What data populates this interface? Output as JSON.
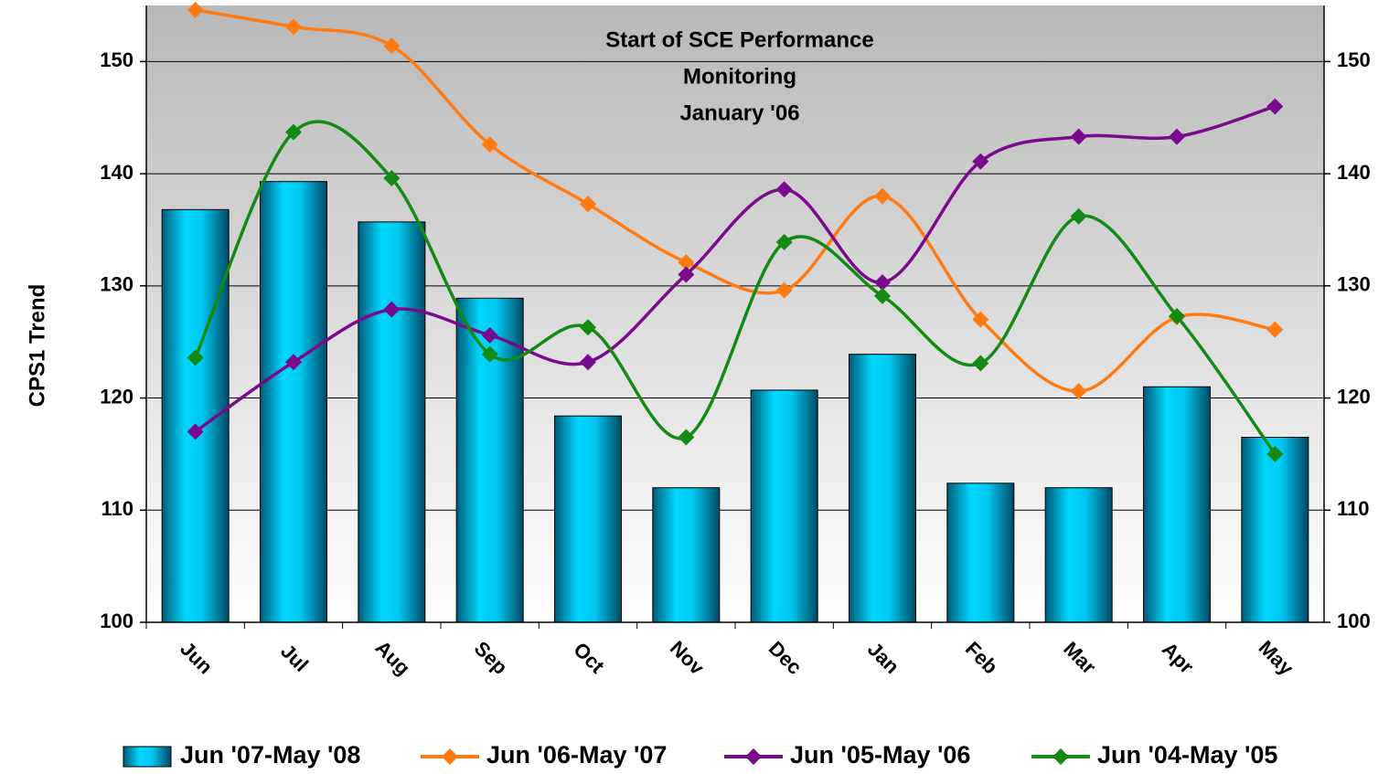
{
  "chart_data": {
    "type": "bar-line",
    "y_label": "CPS1 Trend",
    "annotation": [
      "Start of SCE Performance",
      "Monitoring",
      "January '06"
    ],
    "categories": [
      "Jun",
      "Jul",
      "Aug",
      "Sep",
      "Oct",
      "Nov",
      "Dec",
      "Jan",
      "Feb",
      "Mar",
      "Apr",
      "May"
    ],
    "series": [
      {
        "name": "Jun '07-May '08",
        "kind": "bar",
        "color": "#00c8f0",
        "values": [
          136.8,
          139.3,
          135.7,
          128.9,
          118.4,
          112.0,
          120.7,
          123.9,
          112.4,
          112.0,
          121.0,
          116.5
        ]
      },
      {
        "name": "Jun '06-May '07",
        "kind": "line",
        "color": "#ff7a10",
        "values": [
          154.6,
          153.1,
          151.4,
          142.6,
          137.3,
          132.1,
          129.6,
          138.0,
          127.0,
          120.6,
          127.2,
          126.1
        ]
      },
      {
        "name": "Jun '05-May '06",
        "kind": "line",
        "color": "#7a0a8c",
        "values": [
          117.0,
          123.2,
          127.9,
          125.6,
          123.2,
          131.0,
          138.6,
          130.3,
          141.1,
          143.3,
          143.3,
          146.0
        ]
      },
      {
        "name": "Jun '04-May '05",
        "kind": "line",
        "color": "#138a13",
        "values": [
          123.6,
          143.7,
          139.6,
          123.9,
          126.3,
          116.5,
          133.9,
          129.1,
          123.1,
          136.2,
          127.3,
          115.0
        ]
      }
    ],
    "ylim": [
      100,
      155
    ],
    "yticks": [
      100,
      110,
      120,
      130,
      140,
      150
    ],
    "y2lim": [
      100,
      155
    ],
    "y2ticks": [
      100,
      110,
      120,
      130,
      140,
      150
    ],
    "grid": true
  }
}
